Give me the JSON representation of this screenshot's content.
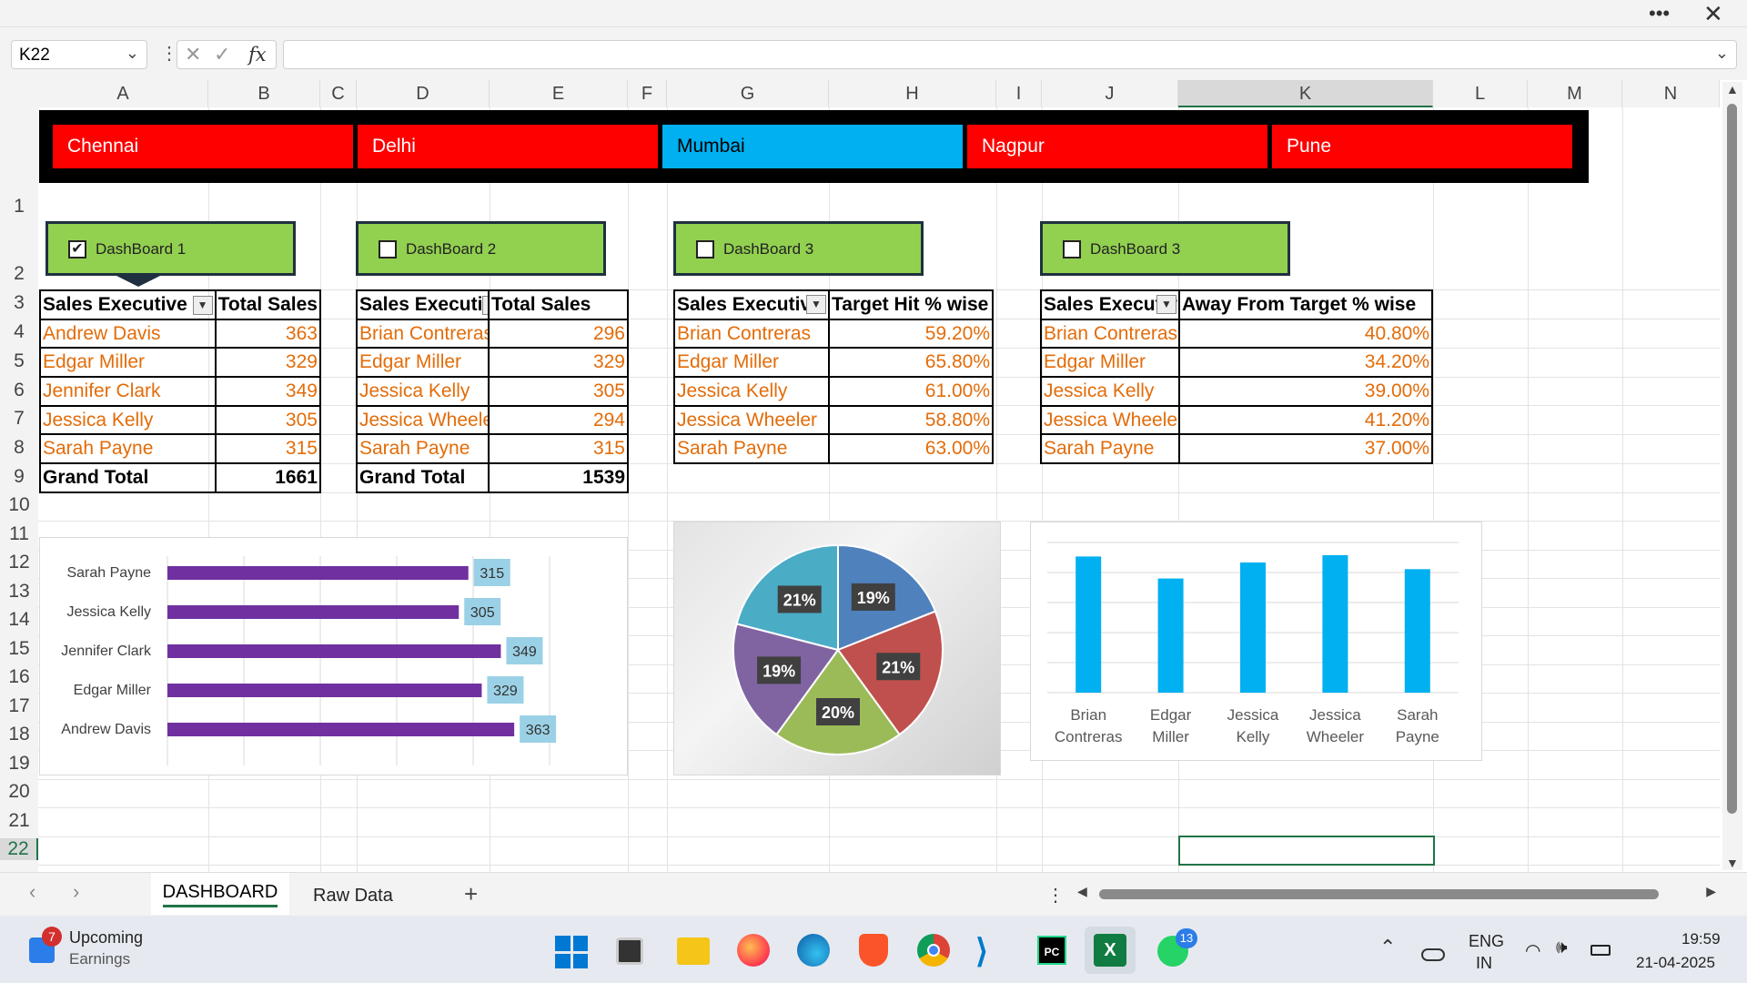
{
  "window": {
    "more_icon": "more-icon",
    "close_icon": "close-icon"
  },
  "formula_bar": {
    "name_box": "K22",
    "fx_label": "fx",
    "formula": ""
  },
  "columns": [
    "A",
    "B",
    "C",
    "D",
    "E",
    "F",
    "G",
    "H",
    "I",
    "J",
    "K",
    "L",
    "M",
    "N"
  ],
  "rows": [
    "1",
    "2",
    "3",
    "4",
    "5",
    "6",
    "7",
    "8",
    "9",
    "10",
    "11",
    "12",
    "13",
    "14",
    "15",
    "16",
    "17",
    "18",
    "19",
    "20",
    "21",
    "22"
  ],
  "slicer": {
    "items": [
      {
        "label": "Chennai",
        "color": "#ff0000"
      },
      {
        "label": "Delhi",
        "color": "#ff0000"
      },
      {
        "label": "Mumbai",
        "color": "#00b0f0"
      },
      {
        "label": "Nagpur",
        "color": "#ff0000"
      },
      {
        "label": "Pune",
        "color": "#ff0000"
      }
    ]
  },
  "dashboard_buttons": [
    {
      "label": "DashBoard 1",
      "checked": true,
      "check": "✔"
    },
    {
      "label": "DashBoard 2",
      "checked": false,
      "check": ""
    },
    {
      "label": "DashBoard 3",
      "checked": false,
      "check": ""
    },
    {
      "label": "DashBoard 3",
      "checked": false,
      "check": ""
    }
  ],
  "pivot1": {
    "h1": "Sales Executive",
    "h2": "Total Sales",
    "rows": [
      [
        "Andrew Davis",
        "363"
      ],
      [
        "Edgar Miller",
        "329"
      ],
      [
        "Jennifer Clark",
        "349"
      ],
      [
        "Jessica Kelly",
        "305"
      ],
      [
        "Sarah Payne",
        "315"
      ]
    ],
    "total_label": "Grand Total",
    "total": "1661"
  },
  "pivot2": {
    "h1": "Sales Executive",
    "h2": "Total Sales",
    "rows": [
      [
        "Brian Contreras",
        "296"
      ],
      [
        "Edgar Miller",
        "329"
      ],
      [
        "Jessica Kelly",
        "305"
      ],
      [
        "Jessica Wheeler",
        "294"
      ],
      [
        "Sarah Payne",
        "315"
      ]
    ],
    "total_label": "Grand Total",
    "total": "1539"
  },
  "pivot3": {
    "h1": "Sales Executive",
    "h2": "Target Hit % wise",
    "rows": [
      [
        "Brian Contreras",
        "59.20%"
      ],
      [
        "Edgar Miller",
        "65.80%"
      ],
      [
        "Jessica Kelly",
        "61.00%"
      ],
      [
        "Jessica Wheeler",
        "58.80%"
      ],
      [
        "Sarah Payne",
        "63.00%"
      ]
    ]
  },
  "pivot4": {
    "h1": "Sales Executive",
    "h2": "Away From Target % wise",
    "rows": [
      [
        "Brian Contreras",
        "40.80%"
      ],
      [
        "Edgar Miller",
        "34.20%"
      ],
      [
        "Jessica Kelly",
        "39.00%"
      ],
      [
        "Jessica Wheeler",
        "41.20%"
      ],
      [
        "Sarah Payne",
        "37.00%"
      ]
    ]
  },
  "chart_data": [
    {
      "type": "bar",
      "orientation": "horizontal",
      "categories": [
        "Sarah Payne",
        "Jessica Kelly",
        "Jennifer Clark",
        "Edgar Miller",
        "Andrew Davis"
      ],
      "values": [
        315,
        305,
        349,
        329,
        363
      ],
      "data_labels": [
        "315",
        "305",
        "349",
        "329",
        "363"
      ],
      "color": "#7030a0"
    },
    {
      "type": "pie",
      "labels": [
        "19%",
        "21%",
        "20%",
        "19%",
        "21%"
      ],
      "values": [
        19,
        21,
        20,
        19,
        21
      ],
      "colors": [
        "#4f81bd",
        "#c0504d",
        "#9bbb59",
        "#8064a2",
        "#4bacc6"
      ]
    },
    {
      "type": "bar",
      "categories": [
        "Brian Contreras",
        "Edgar Miller",
        "Jessica Kelly",
        "Jessica Wheeler",
        "Sarah Payne"
      ],
      "category_lines": [
        [
          "Brian",
          "Contreras"
        ],
        [
          "Edgar",
          "Miller"
        ],
        [
          "Jessica",
          "Kelly"
        ],
        [
          "Jessica",
          "Wheeler"
        ],
        [
          "Sarah",
          "Payne"
        ]
      ],
      "values": [
        40.8,
        34.2,
        39.0,
        41.2,
        37.0
      ],
      "color": "#00b0f0",
      "ylim": [
        0,
        45
      ]
    }
  ],
  "sheet_tabs": {
    "active": "DASHBOARD",
    "other": "Raw Data",
    "add": "+"
  },
  "taskbar": {
    "badge": "7",
    "news_title": "Upcoming",
    "news_sub": "Earnings",
    "whatsapp_badge": "13",
    "lang1": "ENG",
    "lang2": "IN",
    "time": "19:59",
    "date": "21-04-2025"
  }
}
